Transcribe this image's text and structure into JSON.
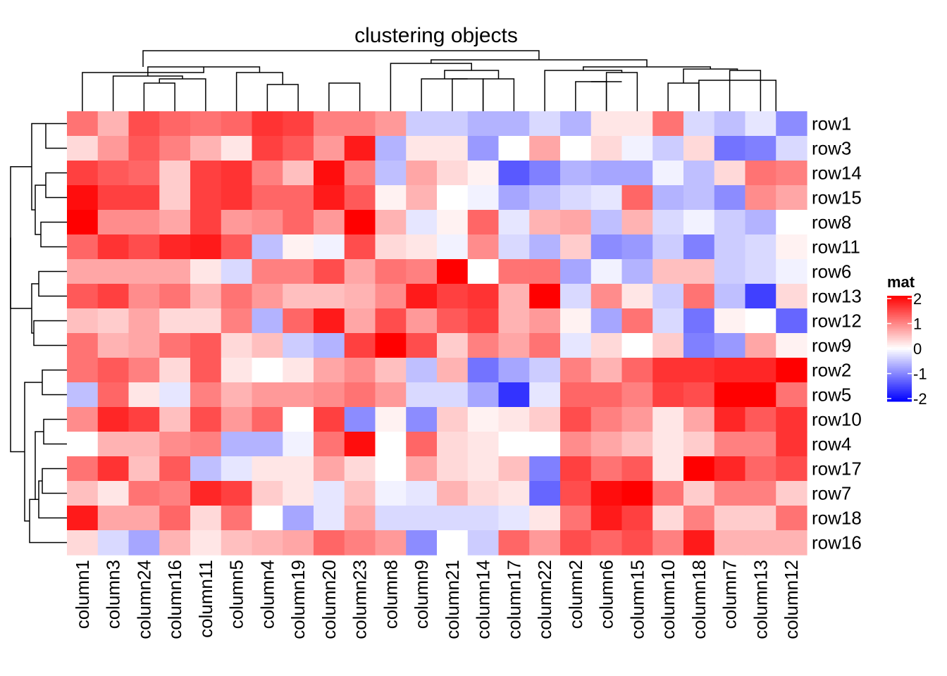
{
  "chart_data": {
    "type": "heatmap",
    "title": "clustering objects",
    "rows": [
      "row1",
      "row3",
      "row14",
      "row15",
      "row8",
      "row11",
      "row6",
      "row13",
      "row12",
      "row9",
      "row2",
      "row5",
      "row10",
      "row4",
      "row17",
      "row7",
      "row18",
      "row16"
    ],
    "columns": [
      "column1",
      "column3",
      "column24",
      "column16",
      "column11",
      "column5",
      "column4",
      "column19",
      "column20",
      "column23",
      "column8",
      "column9",
      "column21",
      "column14",
      "column17",
      "column22",
      "column2",
      "column6",
      "column15",
      "column10",
      "column18",
      "column7",
      "column13",
      "column12"
    ],
    "values": [
      [
        1.1,
        0.6,
        1.4,
        1.2,
        1.1,
        1.2,
        1.6,
        1.5,
        1.0,
        1.0,
        0.8,
        -0.4,
        -0.4,
        -0.6,
        -0.6,
        -0.3,
        -0.6,
        0.2,
        0.2,
        1.1,
        -0.3,
        -0.5,
        -0.2,
        -0.9
      ],
      [
        0.3,
        0.8,
        1.3,
        1.0,
        0.6,
        0.2,
        1.5,
        1.3,
        0.8,
        1.8,
        -0.6,
        0.2,
        0.2,
        -0.8,
        0.0,
        0.7,
        0.0,
        0.3,
        -0.1,
        -0.4,
        0.3,
        -1.1,
        -1.0,
        -0.3
      ],
      [
        1.5,
        1.3,
        1.2,
        0.4,
        1.5,
        1.6,
        1.0,
        0.5,
        1.9,
        1.0,
        -0.5,
        0.7,
        0.3,
        0.1,
        -1.3,
        -1.0,
        -0.6,
        -0.7,
        -0.7,
        -0.1,
        -0.5,
        0.3,
        1.1,
        1.0
      ],
      [
        1.9,
        1.5,
        1.5,
        0.4,
        1.5,
        1.6,
        1.2,
        1.2,
        1.8,
        1.3,
        0.1,
        0.6,
        0.0,
        -0.1,
        -0.7,
        -0.5,
        -0.3,
        -0.2,
        1.2,
        -0.6,
        -0.5,
        -0.9,
        0.9,
        0.7
      ],
      [
        2.2,
        0.9,
        0.9,
        0.7,
        1.5,
        0.8,
        0.9,
        1.2,
        0.8,
        2.0,
        0.6,
        -0.2,
        0.1,
        1.2,
        -0.2,
        0.6,
        0.7,
        -0.5,
        0.6,
        -0.3,
        -0.1,
        -0.4,
        -0.6,
        0.0
      ],
      [
        1.2,
        1.6,
        1.4,
        1.7,
        1.8,
        1.3,
        -0.5,
        0.1,
        -0.1,
        1.4,
        0.3,
        0.2,
        -0.1,
        0.9,
        -0.3,
        -0.6,
        0.4,
        -0.9,
        -0.8,
        -0.4,
        -1.0,
        -0.4,
        -0.3,
        0.1
      ],
      [
        0.7,
        0.7,
        0.7,
        0.7,
        0.2,
        -0.3,
        1.0,
        1.0,
        1.4,
        0.7,
        1.1,
        1.0,
        2.0,
        0.0,
        1.1,
        1.1,
        -0.7,
        -0.1,
        -0.6,
        0.5,
        0.5,
        -0.4,
        -0.3,
        -0.1
      ],
      [
        1.3,
        1.5,
        0.9,
        1.1,
        0.6,
        1.1,
        0.8,
        0.5,
        0.5,
        0.6,
        0.9,
        1.8,
        1.5,
        1.6,
        0.6,
        2.0,
        -0.3,
        0.9,
        0.2,
        -0.4,
        1.1,
        -0.5,
        -1.5,
        0.3
      ],
      [
        0.5,
        0.4,
        0.7,
        0.3,
        0.3,
        1.0,
        -0.6,
        1.2,
        1.8,
        0.7,
        1.4,
        0.8,
        1.3,
        1.5,
        0.6,
        0.8,
        0.1,
        -0.7,
        1.1,
        -0.3,
        -1.1,
        0.1,
        0.0,
        -1.2
      ],
      [
        1.1,
        0.6,
        0.7,
        1.1,
        1.3,
        0.3,
        0.5,
        -0.4,
        -0.6,
        1.5,
        2.0,
        1.4,
        0.4,
        1.0,
        0.7,
        1.1,
        -0.2,
        0.3,
        0.0,
        0.4,
        -1.0,
        -0.8,
        0.7,
        0.1
      ],
      [
        1.1,
        1.3,
        1.0,
        0.3,
        1.3,
        0.2,
        0.0,
        0.2,
        0.7,
        0.9,
        0.5,
        -0.5,
        0.6,
        -1.1,
        -0.7,
        -0.4,
        1.0,
        0.6,
        1.2,
        1.6,
        1.6,
        1.7,
        1.7,
        2.3
      ],
      [
        -0.5,
        1.2,
        0.2,
        -0.2,
        1.0,
        0.6,
        0.8,
        0.8,
        0.9,
        1.1,
        0.8,
        -0.3,
        -0.3,
        -0.7,
        -1.6,
        -0.2,
        1.2,
        1.2,
        1.0,
        1.5,
        1.4,
        2.2,
        2.2,
        1.1
      ],
      [
        0.9,
        1.7,
        1.5,
        0.5,
        1.4,
        0.8,
        1.2,
        0.0,
        1.5,
        -0.9,
        0.1,
        -0.9,
        0.4,
        0.1,
        0.2,
        0.4,
        1.4,
        1.0,
        0.8,
        0.2,
        0.7,
        1.7,
        1.3,
        1.6
      ],
      [
        0.0,
        0.6,
        0.6,
        0.9,
        1.0,
        -0.6,
        -0.6,
        -0.1,
        1.1,
        1.9,
        0.0,
        1.2,
        0.3,
        0.2,
        0.0,
        0.0,
        0.9,
        0.7,
        0.5,
        0.2,
        0.4,
        1.0,
        1.0,
        1.6
      ],
      [
        1.1,
        1.6,
        0.5,
        1.3,
        -0.5,
        -0.2,
        0.2,
        0.2,
        0.7,
        0.3,
        0.0,
        0.7,
        0.3,
        0.2,
        0.5,
        -1.0,
        1.5,
        1.1,
        1.3,
        0.2,
        2.2,
        1.7,
        1.2,
        1.4
      ],
      [
        0.5,
        0.2,
        1.1,
        1.0,
        1.7,
        1.5,
        0.4,
        0.2,
        -0.2,
        0.5,
        -0.1,
        -0.2,
        0.6,
        0.3,
        0.2,
        -1.2,
        1.4,
        1.9,
        2.2,
        1.1,
        0.4,
        1.0,
        1.0,
        0.4
      ],
      [
        1.8,
        0.7,
        0.7,
        1.2,
        0.3,
        1.1,
        0.0,
        -0.7,
        -0.2,
        0.7,
        -0.3,
        -0.3,
        -0.3,
        -0.3,
        -0.2,
        0.2,
        1.1,
        1.8,
        1.5,
        0.3,
        1.0,
        0.4,
        0.4,
        1.1
      ],
      [
        0.3,
        -0.3,
        -0.7,
        0.6,
        0.2,
        0.5,
        0.6,
        0.7,
        1.2,
        1.0,
        0.8,
        -0.9,
        0.0,
        -0.4,
        1.2,
        0.8,
        1.4,
        1.2,
        1.4,
        1.0,
        1.8,
        0.6,
        0.6,
        0.6
      ]
    ],
    "color_scale": {
      "low": "#0000ff",
      "mid": "#ffffff",
      "high": "#ff0000",
      "domain": [
        -2,
        2
      ]
    },
    "row_dendrogram_side": "left",
    "column_dendrogram_side": "top",
    "legend": {
      "title": "mat",
      "ticks": [
        "2",
        "1",
        "0",
        "-1",
        "-2"
      ],
      "placement": "right"
    }
  }
}
